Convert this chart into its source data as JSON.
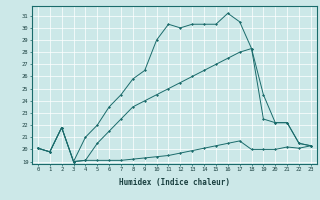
{
  "xlabel": "Humidex (Indice chaleur)",
  "ylabel": "",
  "background_color": "#cce8e8",
  "line_color": "#1a6b6b",
  "xlim": [
    -0.5,
    23.5
  ],
  "ylim": [
    18.8,
    31.8
  ],
  "yticks": [
    19,
    20,
    21,
    22,
    23,
    24,
    25,
    26,
    27,
    28,
    29,
    30,
    31
  ],
  "xticks": [
    0,
    1,
    2,
    3,
    4,
    5,
    6,
    7,
    8,
    9,
    10,
    11,
    12,
    13,
    14,
    15,
    16,
    17,
    18,
    19,
    20,
    21,
    22,
    23
  ],
  "series": [
    {
      "x": [
        0,
        1,
        2,
        3,
        4,
        5,
        6,
        7,
        8,
        9,
        10,
        11,
        12,
        13,
        14,
        15,
        16,
        17,
        18,
        19,
        20,
        21,
        22,
        23
      ],
      "y": [
        20.1,
        19.8,
        21.8,
        19.0,
        19.1,
        19.1,
        19.1,
        19.1,
        19.2,
        19.3,
        19.4,
        19.5,
        19.7,
        19.9,
        20.1,
        20.3,
        20.5,
        20.7,
        20.0,
        20.0,
        20.0,
        20.2,
        20.1,
        20.3
      ]
    },
    {
      "x": [
        0,
        1,
        2,
        3,
        4,
        5,
        6,
        7,
        8,
        9,
        10,
        11,
        12,
        13,
        14,
        15,
        16,
        17,
        18,
        19,
        20,
        21,
        22,
        23
      ],
      "y": [
        20.1,
        19.8,
        21.8,
        19.0,
        19.1,
        20.5,
        21.5,
        22.5,
        23.5,
        24.0,
        24.5,
        25.0,
        25.5,
        26.0,
        26.5,
        27.0,
        27.5,
        28.0,
        28.3,
        24.5,
        22.2,
        22.2,
        20.5,
        20.3
      ]
    },
    {
      "x": [
        0,
        1,
        2,
        3,
        4,
        5,
        6,
        7,
        8,
        9,
        10,
        11,
        12,
        13,
        14,
        15,
        16,
        17,
        18,
        19,
        20,
        21,
        22,
        23
      ],
      "y": [
        20.1,
        19.8,
        21.8,
        19.0,
        21.0,
        22.0,
        23.5,
        24.5,
        25.8,
        26.5,
        29.0,
        30.3,
        30.0,
        30.3,
        30.3,
        30.3,
        31.2,
        30.5,
        28.3,
        22.5,
        22.2,
        22.2,
        20.5,
        20.3
      ]
    }
  ]
}
